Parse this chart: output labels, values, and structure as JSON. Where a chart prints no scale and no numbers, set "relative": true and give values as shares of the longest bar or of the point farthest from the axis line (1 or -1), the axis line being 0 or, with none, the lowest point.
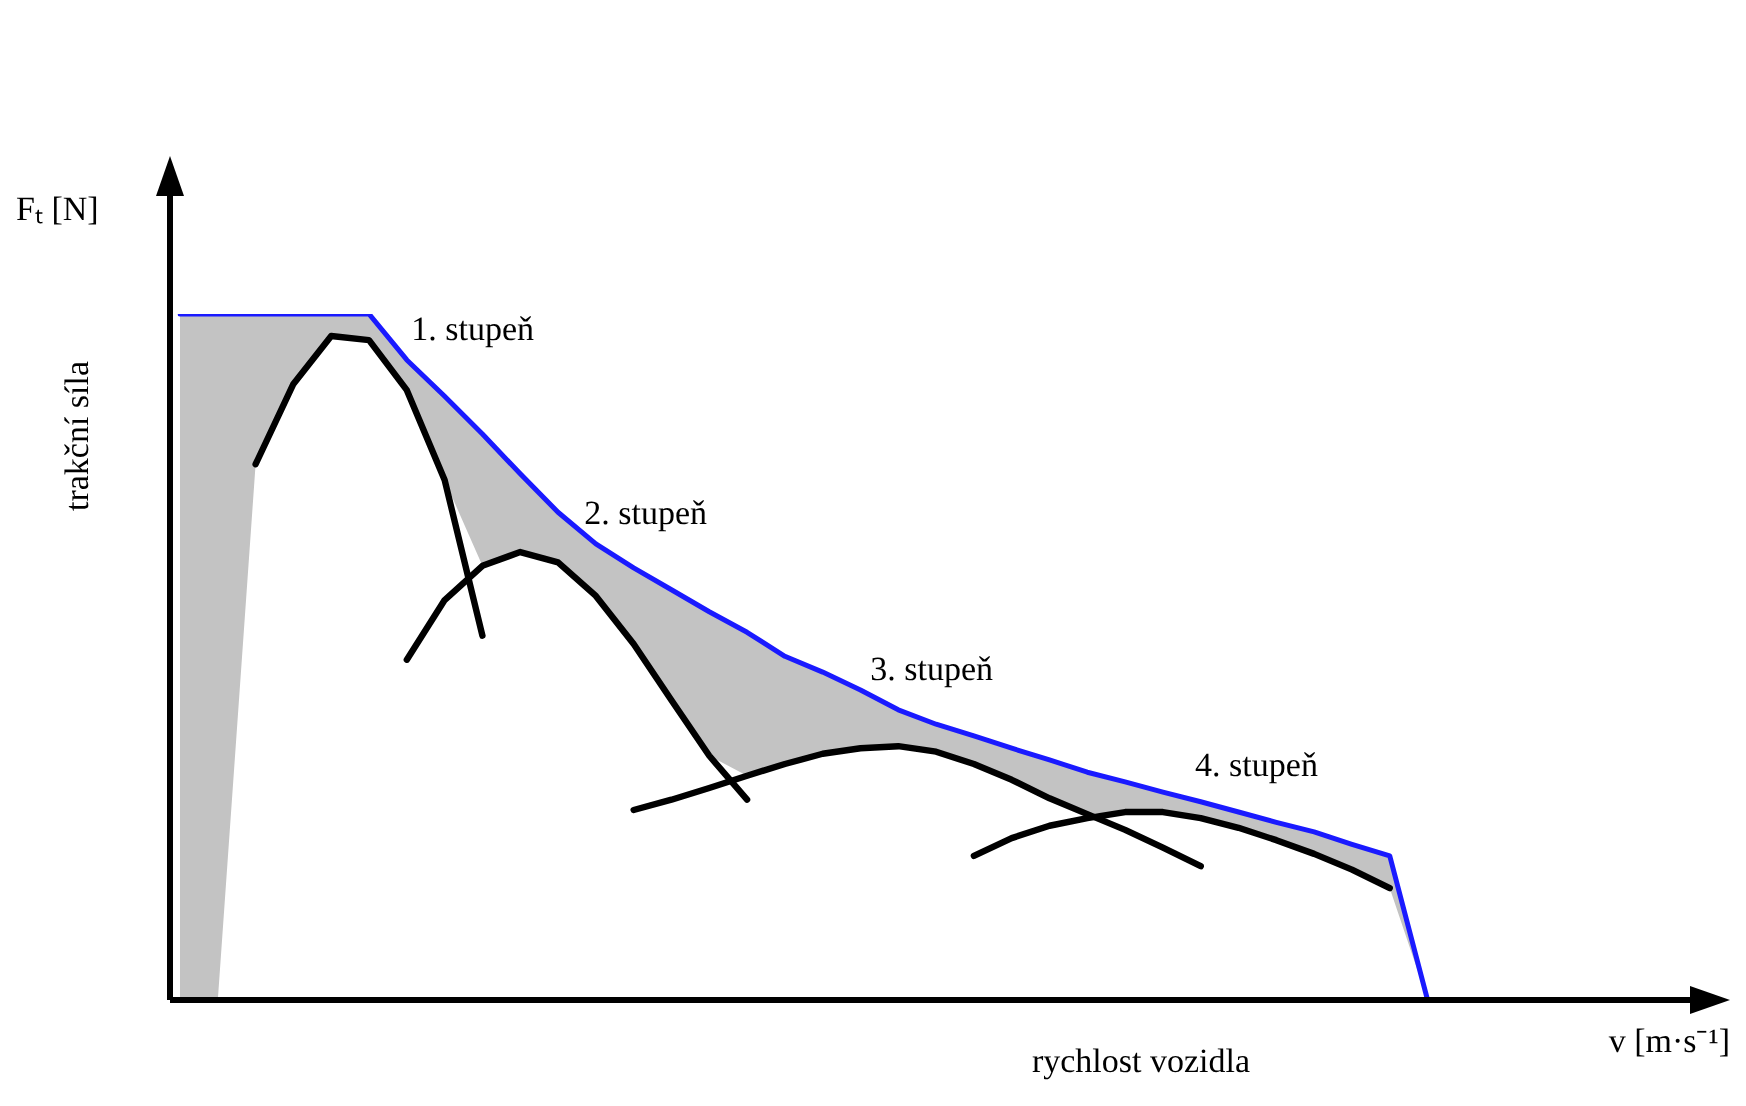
{
  "chart_data": {
    "type": "line",
    "relative": true,
    "xlabel": "rychlost vozidla",
    "ylabel": "trakční síla",
    "annotations": [
      "Fₜ [N]",
      "v [m·s⁻¹]"
    ],
    "legend": false,
    "grid": false,
    "marker": "none",
    "line_style": "solid",
    "categories": [
      null,
      null,
      null,
      null,
      null,
      null,
      null,
      null,
      null,
      null,
      null,
      null,
      null,
      null,
      null,
      null,
      null,
      null,
      null,
      null,
      null,
      null,
      null,
      null,
      null,
      null,
      null,
      null,
      null,
      null,
      null,
      null,
      null,
      null,
      null,
      null,
      null,
      null,
      null,
      null,
      null,
      null
    ],
    "series": [
      {
        "color": "#1a1aff",
        "values": [
          1,
          1,
          1,
          1,
          1,
          1,
          0.933,
          0.88,
          0.825,
          0.767,
          0.711,
          0.665,
          0.63,
          0.598,
          0.566,
          0.536,
          0.501,
          0.478,
          0.452,
          0.423,
          0.402,
          0.385,
          0.367,
          0.35,
          0.332,
          0.318,
          0.303,
          0.289,
          0.274,
          0.259,
          0.245,
          0.227,
          0.21,
          0,
          null,
          null,
          null,
          null,
          null,
          null,
          null,
          null
        ],
        "upper": [
          1,
          1,
          1,
          1,
          1,
          1,
          0.933,
          0.88,
          0.825,
          0.767,
          0.711,
          0.665,
          0.63,
          0.598,
          0.566,
          0.536,
          0.501,
          0.478,
          0.452,
          0.423,
          0.402,
          0.385,
          0.367,
          0.35,
          0.332,
          0.318,
          0.303,
          0.289,
          0.274,
          0.259,
          0.245,
          0.227,
          0.21,
          0,
          null,
          null,
          null,
          null,
          null,
          null,
          null,
          null
        ],
        "lower": [
          0,
          0,
          0.781,
          0.898,
          0.968,
          0.962,
          0.889,
          0.758,
          0.633,
          0.653,
          0.638,
          0.589,
          0.519,
          0.437,
          0.356,
          0.327,
          0.344,
          0.359,
          0.367,
          0.37,
          0.362,
          0.344,
          0.321,
          0.294,
          0.271,
          0.274,
          0.274,
          0.265,
          0.251,
          0.233,
          0.213,
          0.19,
          0.163,
          0,
          null,
          null,
          null,
          null,
          null,
          null,
          null,
          null
        ]
      },
      {
        "name": "1. stupeň",
        "color": "#000000",
        "values": [
          null,
          null,
          0.781,
          0.898,
          0.968,
          0.962,
          0.889,
          0.758,
          0.531,
          null,
          null,
          null,
          null,
          null,
          null,
          null,
          null,
          null,
          null,
          null,
          null,
          null,
          null,
          null,
          null,
          null,
          null,
          null,
          null,
          null,
          null,
          null,
          null,
          null,
          null,
          null,
          null,
          null,
          null,
          null,
          null,
          null
        ]
      },
      {
        "name": "2. stupeň",
        "color": "#000000",
        "values": [
          null,
          null,
          null,
          null,
          null,
          null,
          0.496,
          0.583,
          0.633,
          0.653,
          0.638,
          0.589,
          0.519,
          0.437,
          0.356,
          0.292,
          null,
          null,
          null,
          null,
          null,
          null,
          null,
          null,
          null,
          null,
          null,
          null,
          null,
          null,
          null,
          null,
          null,
          null,
          null,
          null,
          null,
          null,
          null,
          null,
          null,
          null
        ]
      },
      {
        "name": "3. stupeň",
        "color": "#000000",
        "values": [
          null,
          null,
          null,
          null,
          null,
          null,
          null,
          null,
          null,
          null,
          null,
          null,
          0.277,
          0.292,
          0.309,
          0.327,
          0.344,
          0.359,
          0.367,
          0.37,
          0.362,
          0.344,
          0.321,
          0.294,
          0.271,
          0.248,
          0.222,
          0.195,
          null,
          null,
          null,
          null,
          null,
          null,
          null,
          null,
          null,
          null,
          null,
          null,
          null,
          null
        ]
      },
      {
        "name": "4. stupeň",
        "color": "#000000",
        "values": [
          null,
          null,
          null,
          null,
          null,
          null,
          null,
          null,
          null,
          null,
          null,
          null,
          null,
          null,
          null,
          null,
          null,
          null,
          null,
          null,
          null,
          0.21,
          0.236,
          0.254,
          0.265,
          0.274,
          0.274,
          0.265,
          0.251,
          0.233,
          0.213,
          0.19,
          0.163,
          null,
          null,
          null,
          null,
          null,
          null,
          null,
          null,
          null
        ]
      }
    ]
  }
}
